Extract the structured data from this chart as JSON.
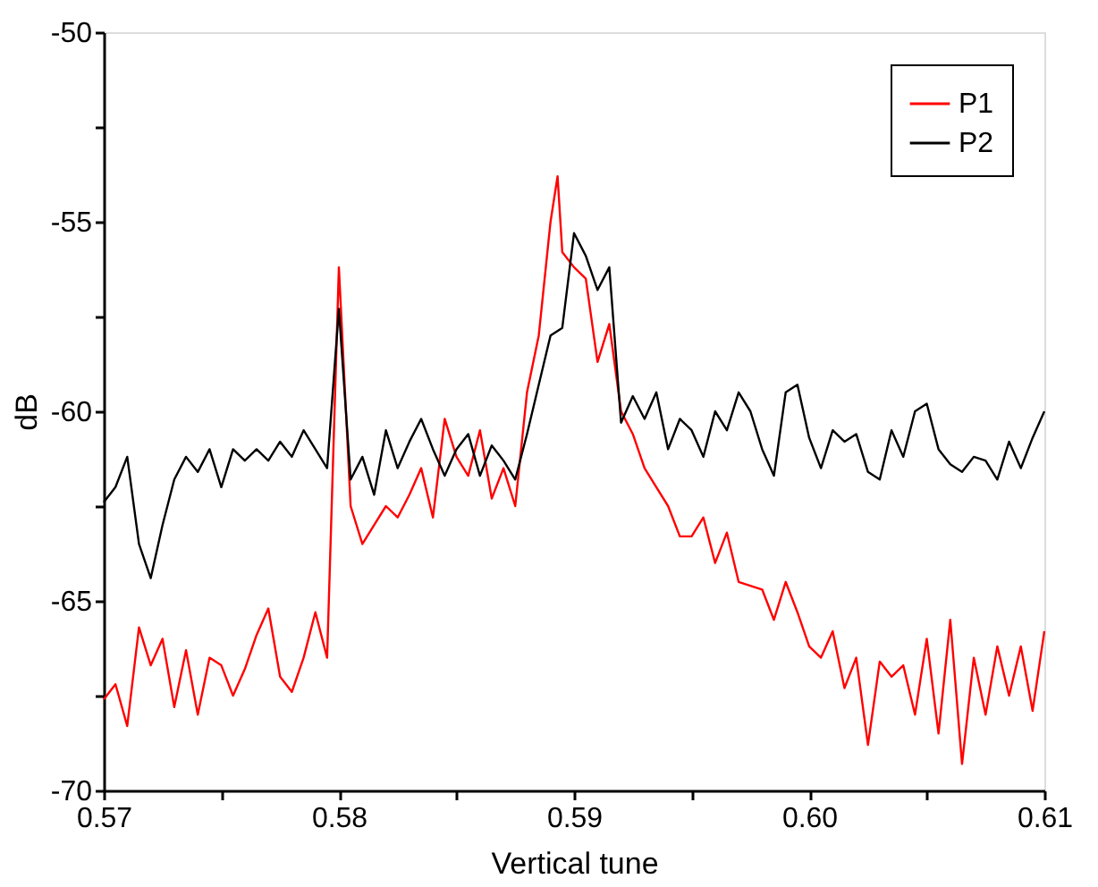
{
  "chart_data": {
    "type": "line",
    "xlabel": "Vertical tune",
    "ylabel": "dB",
    "xlim": [
      0.57,
      0.61
    ],
    "ylim": [
      -70,
      -50
    ],
    "xticks": [
      0.57,
      {
        "value": 0.575,
        "label": null
      },
      0.58,
      {
        "value": 0.585,
        "label": null
      },
      0.59,
      {
        "value": 0.595,
        "label": null
      },
      {
        "value": 0.6,
        "label": "0.60"
      },
      {
        "value": 0.605,
        "label": null
      },
      0.61
    ],
    "yticks": [
      -70,
      {
        "value": -67.5,
        "label": null
      },
      -65,
      {
        "value": -62.5,
        "label": null
      },
      -60,
      {
        "value": -57.5,
        "label": null
      },
      -55,
      {
        "value": -52.5,
        "label": null
      },
      -50
    ],
    "grid": false,
    "legend": "top right",
    "marker": "none",
    "line_style": "solid",
    "series": [
      {
        "name": "P1",
        "color": "#ff0000",
        "x": [
          0.57,
          0.5705,
          0.571,
          0.5715,
          0.572,
          0.5725,
          0.573,
          0.5735,
          0.574,
          0.5745,
          0.575,
          0.5755,
          0.576,
          0.5765,
          0.577,
          0.5775,
          0.578,
          0.5785,
          0.579,
          0.5795,
          0.58,
          0.5805,
          0.581,
          0.5815,
          0.582,
          0.5825,
          0.583,
          0.5835,
          0.584,
          0.5845,
          0.585,
          0.5855,
          0.586,
          0.5865,
          0.587,
          0.5875,
          0.588,
          0.5885,
          0.589,
          0.5893,
          0.5895,
          0.59,
          0.5905,
          0.591,
          0.5915,
          0.592,
          0.5925,
          0.593,
          0.5935,
          0.594,
          0.5945,
          0.595,
          0.5955,
          0.596,
          0.5965,
          0.597,
          0.5975,
          0.598,
          0.5985,
          0.599,
          0.5995,
          0.6,
          0.6005,
          0.601,
          0.6015,
          0.602,
          0.6025,
          0.603,
          0.6035,
          0.604,
          0.6045,
          0.605,
          0.6055,
          0.606,
          0.6065,
          0.607,
          0.6075,
          0.608,
          0.6085,
          0.609,
          0.6095,
          0.61
        ],
        "values": [
          -67.6,
          -67.2,
          -68.3,
          -65.7,
          -66.7,
          -66.0,
          -67.8,
          -66.3,
          -68.0,
          -66.5,
          -66.7,
          -67.5,
          -66.8,
          -65.9,
          -65.2,
          -67.0,
          -67.4,
          -66.5,
          -65.3,
          -66.5,
          -56.2,
          -62.5,
          -63.5,
          -63.0,
          -62.5,
          -62.8,
          -62.2,
          -61.5,
          -62.8,
          -60.2,
          -61.2,
          -61.7,
          -60.5,
          -62.3,
          -61.5,
          -62.5,
          -59.5,
          -58.0,
          -55.0,
          -53.8,
          -55.8,
          -56.2,
          -56.5,
          -58.7,
          -57.7,
          -60.0,
          -60.6,
          -61.5,
          -62.0,
          -62.5,
          -63.3,
          -63.3,
          -62.8,
          -64.0,
          -63.2,
          -64.5,
          -64.6,
          -64.7,
          -65.5,
          -64.5,
          -65.3,
          -66.2,
          -66.5,
          -65.8,
          -67.3,
          -66.5,
          -68.8,
          -66.6,
          -67.0,
          -66.7,
          -68.0,
          -66.0,
          -68.5,
          -65.5,
          -69.3,
          -66.5,
          -68.0,
          -66.2,
          -67.5,
          -66.2,
          -67.9,
          -65.8
        ]
      },
      {
        "name": "P2",
        "color": "#000000",
        "x": [
          0.57,
          0.5705,
          0.571,
          0.5715,
          0.572,
          0.5725,
          0.573,
          0.5735,
          0.574,
          0.5745,
          0.575,
          0.5755,
          0.576,
          0.5765,
          0.577,
          0.5775,
          0.578,
          0.5785,
          0.579,
          0.5795,
          0.58,
          0.5805,
          0.581,
          0.5815,
          0.582,
          0.5825,
          0.583,
          0.5835,
          0.584,
          0.5845,
          0.585,
          0.5855,
          0.586,
          0.5865,
          0.587,
          0.5875,
          0.588,
          0.5885,
          0.589,
          0.5895,
          0.59,
          0.5905,
          0.591,
          0.5915,
          0.592,
          0.5925,
          0.593,
          0.5935,
          0.594,
          0.5945,
          0.595,
          0.5955,
          0.596,
          0.5965,
          0.597,
          0.5975,
          0.598,
          0.5985,
          0.599,
          0.5995,
          0.6,
          0.6005,
          0.601,
          0.6015,
          0.602,
          0.6025,
          0.603,
          0.6035,
          0.604,
          0.6045,
          0.605,
          0.6055,
          0.606,
          0.6065,
          0.607,
          0.6075,
          0.608,
          0.6085,
          0.609,
          0.6095,
          0.61
        ],
        "values": [
          -62.4,
          -62.0,
          -61.2,
          -63.5,
          -64.4,
          -63.0,
          -61.8,
          -61.2,
          -61.6,
          -61.0,
          -62.0,
          -61.0,
          -61.3,
          -61.0,
          -61.3,
          -60.8,
          -61.2,
          -60.5,
          -61.0,
          -61.5,
          -57.3,
          -61.8,
          -61.2,
          -62.2,
          -60.5,
          -61.5,
          -60.8,
          -60.2,
          -61.0,
          -61.7,
          -61.0,
          -60.6,
          -61.7,
          -60.9,
          -61.3,
          -61.8,
          -60.6,
          -59.3,
          -58.0,
          -57.8,
          -55.3,
          -55.9,
          -56.8,
          -56.2,
          -60.3,
          -59.6,
          -60.2,
          -59.5,
          -61.0,
          -60.2,
          -60.5,
          -61.2,
          -60.0,
          -60.5,
          -59.5,
          -60.0,
          -61.0,
          -61.7,
          -59.5,
          -59.3,
          -60.7,
          -61.5,
          -60.5,
          -60.8,
          -60.6,
          -61.6,
          -61.8,
          -60.5,
          -61.2,
          -60.0,
          -59.8,
          -61.0,
          -61.4,
          -61.6,
          -61.2,
          -61.3,
          -61.8,
          -60.8,
          -61.5,
          -60.7,
          -60.0
        ]
      }
    ]
  }
}
